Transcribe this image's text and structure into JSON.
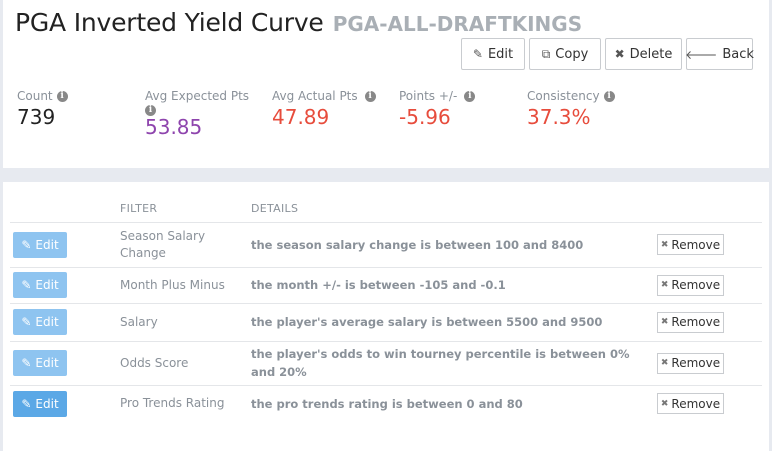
{
  "header": {
    "title": "PGA Inverted Yield Curve",
    "subtitle": "PGA-ALL-DRAFTKINGS",
    "buttons": {
      "edit": "Edit",
      "copy": "Copy",
      "delete": "Delete",
      "back": "Back"
    }
  },
  "stats": [
    {
      "label": "Count",
      "value": "739",
      "color": "#222222"
    },
    {
      "label": "Avg Expected Pts",
      "value": "53.85",
      "color": "#8e44ad"
    },
    {
      "label": "Avg Actual Pts",
      "value": "47.89",
      "color": "#e74c3c"
    },
    {
      "label": "Points +/-",
      "value": "-5.96",
      "color": "#e74c3c"
    },
    {
      "label": "Consistency",
      "value": "37.3%",
      "color": "#e74c3c"
    }
  ],
  "filters": {
    "columns": {
      "filter": "FILTER",
      "details": "DETAILS"
    },
    "edit_label": "Edit",
    "remove_label": "Remove",
    "rows": [
      {
        "filter": "Season Salary Change",
        "details": "the season salary change is between 100 and 8400"
      },
      {
        "filter": "Month Plus Minus",
        "details": "the month +/- is between -105 and -0.1"
      },
      {
        "filter": "Salary",
        "details": "the player's average salary is between 5500 and 9500"
      },
      {
        "filter": "Odds Score",
        "details": "the player's odds to win tourney percentile is between 0% and 20%"
      },
      {
        "filter": "Pro Trends Rating",
        "details": "the pro trends rating is between 0 and 80"
      }
    ]
  }
}
